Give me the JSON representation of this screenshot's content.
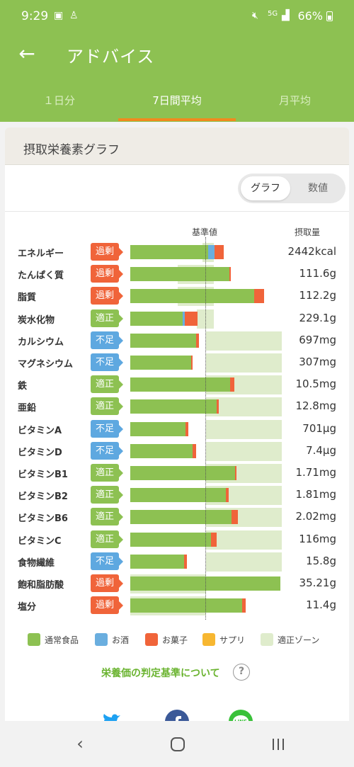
{
  "status_bar": {
    "time": "9:29",
    "network": "5G",
    "battery": "66%"
  },
  "app_bar": {
    "title": "アドバイス"
  },
  "tabs": [
    {
      "label": "１日分",
      "active": false
    },
    {
      "label": "7日間平均",
      "active": true
    },
    {
      "label": "月平均",
      "active": false
    }
  ],
  "card": {
    "title": "摂取栄養素グラフ",
    "toggle": {
      "graph": "グラフ",
      "numbers": "数値",
      "selected": "グラフ"
    },
    "header_standard": "基準値",
    "header_intake": "摂取量",
    "status_labels": {
      "over": "過剰",
      "proper": "適正",
      "short": "不足"
    },
    "chart_data": {
      "type": "bar",
      "stacked": true,
      "reference_line": "基準値",
      "categories": [
        "エネルギー",
        "たんぱく質",
        "脂質",
        "炭水化物",
        "カルシウム",
        "マグネシウム",
        "鉄",
        "亜鉛",
        "ビタミンA",
        "ビタミンD",
        "ビタミンB1",
        "ビタミンB2",
        "ビタミンB6",
        "ビタミンC",
        "食物繊維",
        "飽和脂肪酸",
        "塩分"
      ],
      "status": [
        "過剰",
        "過剰",
        "過剰",
        "適正",
        "不足",
        "不足",
        "適正",
        "適正",
        "不足",
        "不足",
        "適正",
        "適正",
        "適正",
        "適正",
        "不足",
        "過剰",
        "過剰"
      ],
      "intake_labels": [
        "2442kcal",
        "111.6g",
        "112.2g",
        "229.1g",
        "697mg",
        "307mg",
        "10.5mg",
        "12.8mg",
        "701μg",
        "7.4μg",
        "1.71mg",
        "1.81mg",
        "2.02mg",
        "116mg",
        "15.8g",
        "35.21g",
        "11.4g"
      ],
      "series": [
        {
          "name": "通常食品",
          "color": "#8dc152",
          "values": [
            1.03,
            1.31,
            1.64,
            0.69,
            0.87,
            0.8,
            1.32,
            1.14,
            0.73,
            0.82,
            1.38,
            1.26,
            1.34,
            1.07,
            0.71,
            1.98,
            1.48
          ]
        },
        {
          "name": "お酒",
          "color": "#6aaedf",
          "values": [
            0.08,
            0,
            0,
            0.03,
            0,
            0,
            0,
            0,
            0,
            0,
            0,
            0,
            0,
            0,
            0,
            0,
            0
          ]
        },
        {
          "name": "お菓子",
          "color": "#f0643a",
          "values": [
            0.12,
            0.02,
            0.13,
            0.17,
            0.04,
            0.02,
            0.05,
            0.03,
            0.04,
            0.05,
            0.02,
            0.04,
            0.08,
            0.07,
            0.04,
            0,
            0.04
          ]
        },
        {
          "name": "サプリ",
          "color": "#f7b731",
          "values": [
            0,
            0,
            0,
            0,
            0,
            0,
            0,
            0,
            0,
            0,
            0,
            0,
            0,
            0,
            0,
            0,
            0
          ]
        }
      ],
      "proper_zone": [
        [
          0.95,
          1.1
        ],
        [
          0.63,
          1.1
        ],
        [
          0.63,
          1.1
        ],
        [
          0.88,
          1.1
        ],
        [
          1.0,
          2.0
        ],
        [
          1.0,
          2.0
        ],
        [
          1.0,
          2.0
        ],
        [
          1.0,
          2.0
        ],
        [
          1.0,
          2.0
        ],
        [
          1.0,
          2.0
        ],
        [
          1.0,
          2.0
        ],
        [
          1.0,
          2.0
        ],
        [
          1.0,
          2.0
        ],
        [
          1.0,
          2.0
        ],
        [
          1.0,
          2.0
        ],
        [
          0,
          1.0
        ],
        [
          0,
          1.0
        ]
      ],
      "legend": [
        {
          "label": "通常食品",
          "color": "#8dc152"
        },
        {
          "label": "お酒",
          "color": "#6aaedf"
        },
        {
          "label": "お菓子",
          "color": "#f0643a"
        },
        {
          "label": "サプリ",
          "color": "#f7b731"
        },
        {
          "label": "適正ゾーン",
          "color": "#dfeccc"
        }
      ]
    },
    "criteria_link": "栄養価の判定基準について"
  },
  "share_icons": [
    "twitter-icon",
    "facebook-icon",
    "line-icon"
  ]
}
